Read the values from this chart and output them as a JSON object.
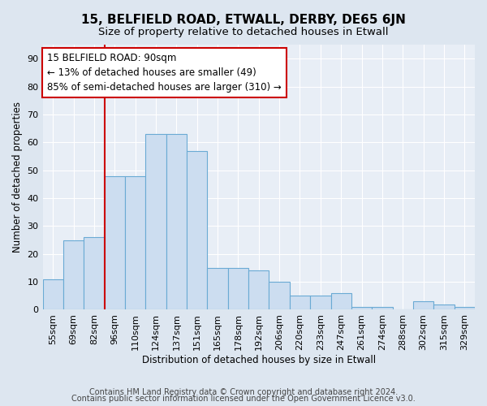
{
  "title": "15, BELFIELD ROAD, ETWALL, DERBY, DE65 6JN",
  "subtitle": "Size of property relative to detached houses in Etwall",
  "xlabel": "Distribution of detached houses by size in Etwall",
  "ylabel": "Number of detached properties",
  "categories": [
    "55sqm",
    "69sqm",
    "82sqm",
    "96sqm",
    "110sqm",
    "124sqm",
    "137sqm",
    "151sqm",
    "165sqm",
    "178sqm",
    "192sqm",
    "206sqm",
    "220sqm",
    "233sqm",
    "247sqm",
    "261sqm",
    "274sqm",
    "288sqm",
    "302sqm",
    "315sqm",
    "329sqm"
  ],
  "values": [
    11,
    25,
    26,
    48,
    48,
    63,
    63,
    57,
    15,
    15,
    14,
    10,
    5,
    5,
    6,
    1,
    1,
    0,
    3,
    2,
    1
  ],
  "bar_color": "#ccddf0",
  "bar_edge_color": "#6aaad4",
  "vline_color": "#cc0000",
  "annotation_text": "15 BELFIELD ROAD: 90sqm\n← 13% of detached houses are smaller (49)\n85% of semi-detached houses are larger (310) →",
  "annotation_box_facecolor": "#ffffff",
  "annotation_box_edgecolor": "#cc0000",
  "ylim": [
    0,
    95
  ],
  "yticks": [
    0,
    10,
    20,
    30,
    40,
    50,
    60,
    70,
    80,
    90
  ],
  "bg_color": "#dde6f0",
  "plot_bg_color": "#e8eef6",
  "footer_line1": "Contains HM Land Registry data © Crown copyright and database right 2024.",
  "footer_line2": "Contains public sector information licensed under the Open Government Licence v3.0.",
  "title_fontsize": 11,
  "subtitle_fontsize": 9.5,
  "footer_fontsize": 7,
  "ylabel_fontsize": 8.5,
  "xlabel_fontsize": 8.5,
  "tick_fontsize": 8,
  "annot_fontsize": 8.5
}
